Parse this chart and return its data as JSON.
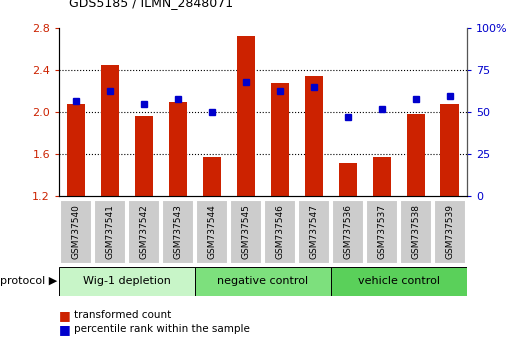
{
  "title": "GDS5185 / ILMN_2848071",
  "samples": [
    "GSM737540",
    "GSM737541",
    "GSM737542",
    "GSM737543",
    "GSM737544",
    "GSM737545",
    "GSM737546",
    "GSM737547",
    "GSM737536",
    "GSM737537",
    "GSM737538",
    "GSM737539"
  ],
  "red_values": [
    2.08,
    2.45,
    1.97,
    2.1,
    1.58,
    2.73,
    2.28,
    2.35,
    1.52,
    1.58,
    1.98,
    2.08
  ],
  "blue_values": [
    57,
    63,
    55,
    58,
    50,
    68,
    63,
    65,
    47,
    52,
    58,
    60
  ],
  "ylim_left": [
    1.2,
    2.8
  ],
  "ylim_right": [
    0,
    100
  ],
  "yticks_left": [
    1.2,
    1.6,
    2.0,
    2.4,
    2.8
  ],
  "yticks_right": [
    0,
    25,
    50,
    75,
    100
  ],
  "groups": [
    {
      "label": "Wig-1 depletion",
      "start": 0,
      "end": 4
    },
    {
      "label": "negative control",
      "start": 4,
      "end": 8
    },
    {
      "label": "vehicle control",
      "start": 8,
      "end": 12
    }
  ],
  "group_colors": [
    "#c8f5c8",
    "#7de07d",
    "#5ad05a"
  ],
  "bar_color": "#cc2200",
  "dot_color": "#0000cc",
  "bar_bottom": 1.2,
  "bar_width": 0.55,
  "legend_red": "transformed count",
  "legend_blue": "percentile rank within the sample",
  "sample_box_color": "#cccccc",
  "grid_yticks": [
    1.6,
    2.0,
    2.4
  ]
}
